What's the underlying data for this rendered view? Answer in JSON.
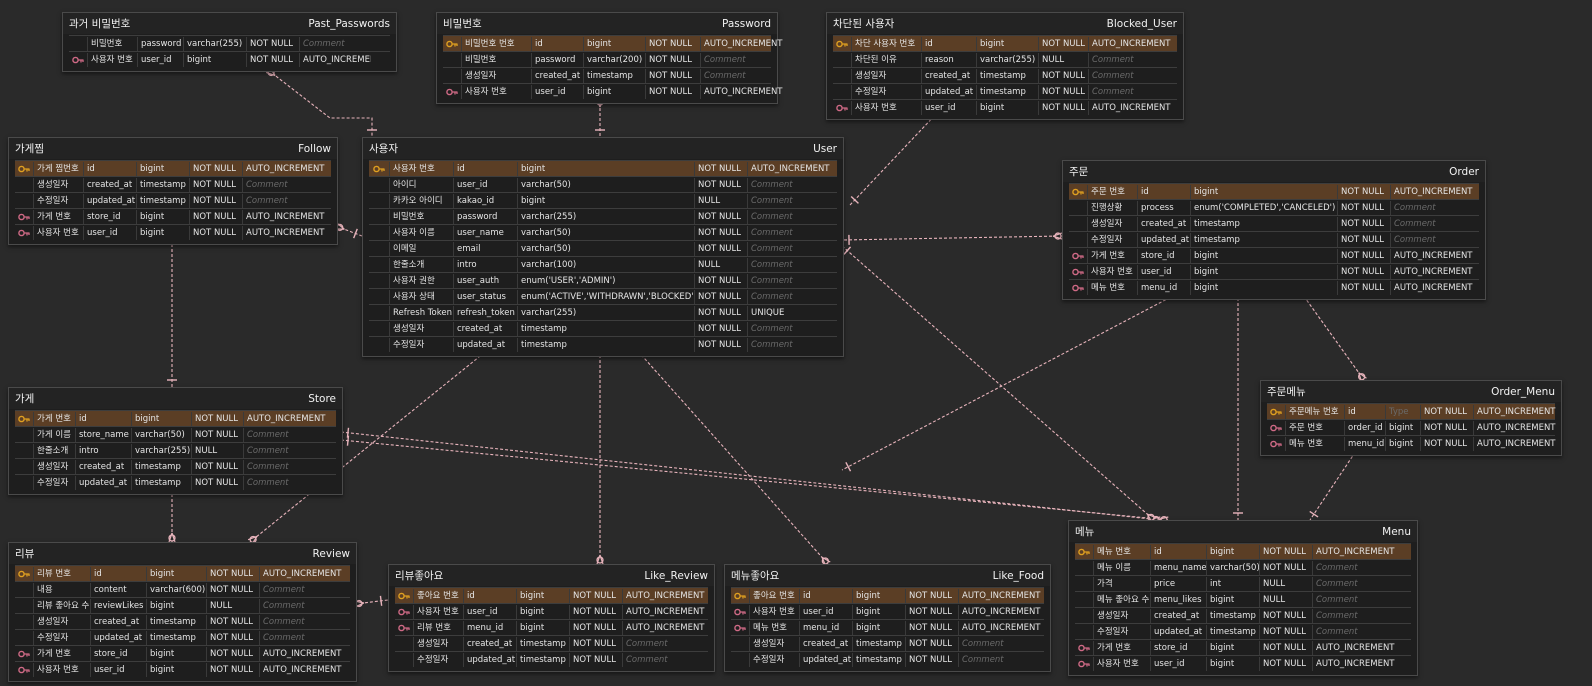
{
  "tables": [
    {
      "id": "past_passwords",
      "label": "과거 비밀번호",
      "name": "Past_Passwords",
      "cols": [
        [
          "",
          "비밀번호",
          "password",
          "varchar(255)",
          "NOT NULL",
          "Comment"
        ],
        [
          "fk",
          "사용자 번호",
          "user_id",
          "bigint",
          "NOT NULL",
          "AUTO_INCREMENT"
        ]
      ]
    },
    {
      "id": "password",
      "label": "비밀번호",
      "name": "Password",
      "cols": [
        [
          "pk",
          "비밀번호 번호",
          "id",
          "bigint",
          "NOT NULL",
          "AUTO_INCREMENT"
        ],
        [
          "",
          "비밀번호",
          "password",
          "varchar(200)",
          "NOT NULL",
          "Comment"
        ],
        [
          "",
          "생성일자",
          "created_at",
          "timestamp",
          "NOT NULL",
          "Comment"
        ],
        [
          "fk",
          "사용자 번호",
          "user_id",
          "bigint",
          "NOT NULL",
          "AUTO_INCREMENT"
        ]
      ]
    },
    {
      "id": "blocked_user",
      "label": "차단된 사용자",
      "name": "Blocked_User",
      "cols": [
        [
          "pk",
          "차단 사용자 번호",
          "id",
          "bigint",
          "NOT NULL",
          "AUTO_INCREMENT"
        ],
        [
          "",
          "차단된 이유",
          "reason",
          "varchar(255)",
          "NULL",
          "Comment"
        ],
        [
          "",
          "생성일자",
          "created_at",
          "timestamp",
          "NOT NULL",
          "Comment"
        ],
        [
          "",
          "수정일자",
          "updated_at",
          "timestamp",
          "NOT NULL",
          "Comment"
        ],
        [
          "fk",
          "사용자 번호",
          "user_id",
          "bigint",
          "NOT NULL",
          "AUTO_INCREMENT"
        ]
      ]
    },
    {
      "id": "follow",
      "label": "가게찜",
      "name": "Follow",
      "cols": [
        [
          "pk",
          "가게 찜번호",
          "id",
          "bigint",
          "NOT NULL",
          "AUTO_INCREMENT"
        ],
        [
          "",
          "생성일자",
          "created_at",
          "timestamp",
          "NOT NULL",
          "Comment"
        ],
        [
          "",
          "수정일자",
          "updated_at",
          "timestamp",
          "NOT NULL",
          "Comment"
        ],
        [
          "fk",
          "가게 번호",
          "store_id",
          "bigint",
          "NOT NULL",
          "AUTO_INCREMENT"
        ],
        [
          "fk",
          "사용자 번호",
          "user_id",
          "bigint",
          "NOT NULL",
          "AUTO_INCREMENT"
        ]
      ]
    },
    {
      "id": "user",
      "label": "사용자",
      "name": "User",
      "cols": [
        [
          "pk",
          "사용자 번호",
          "id",
          "bigint",
          "NOT NULL",
          "AUTO_INCREMENT"
        ],
        [
          "",
          "아이디",
          "user_id",
          "varchar(50)",
          "NOT NULL",
          "Comment"
        ],
        [
          "",
          "카카오 아이디",
          "kakao_id",
          "bigint",
          "NULL",
          "Comment"
        ],
        [
          "",
          "비밀번호",
          "password",
          "varchar(255)",
          "NOT NULL",
          "Comment"
        ],
        [
          "",
          "사용자 이름",
          "user_name",
          "varchar(50)",
          "NOT NULL",
          "Comment"
        ],
        [
          "",
          "이메일",
          "email",
          "varchar(50)",
          "NOT NULL",
          "Comment"
        ],
        [
          "",
          "한줄소개",
          "intro",
          "varchar(100)",
          "NULL",
          "Comment"
        ],
        [
          "",
          "사용자 권한",
          "user_auth",
          "enum('USER','ADMIN')",
          "NOT NULL",
          "Comment"
        ],
        [
          "",
          "사용자 상태",
          "user_status",
          "enum('ACTIVE','WITHDRAWN','BLOCKED')",
          "NOT NULL",
          "Comment"
        ],
        [
          "",
          "Refresh Token",
          "refresh_token",
          "varchar(255)",
          "NOT NULL",
          "UNIQUE"
        ],
        [
          "",
          "생성일자",
          "created_at",
          "timestamp",
          "NOT NULL",
          "Comment"
        ],
        [
          "",
          "수정일자",
          "updated_at",
          "timestamp",
          "NOT NULL",
          "Comment"
        ]
      ]
    },
    {
      "id": "order",
      "label": "주문",
      "name": "Order",
      "cols": [
        [
          "pk",
          "주문 번호",
          "id",
          "bigint",
          "NOT NULL",
          "AUTO_INCREMENT"
        ],
        [
          "",
          "진행상황",
          "process",
          "enum('COMPLETED','CANCELED')",
          "NOT NULL",
          "Comment"
        ],
        [
          "",
          "생성일자",
          "created_at",
          "timestamp",
          "NOT NULL",
          "Comment"
        ],
        [
          "",
          "수정일자",
          "updated_at",
          "timestamp",
          "NOT NULL",
          "Comment"
        ],
        [
          "fk",
          "가게 번호",
          "store_id",
          "bigint",
          "NOT NULL",
          "AUTO_INCREMENT"
        ],
        [
          "fk",
          "사용자 번호",
          "user_id",
          "bigint",
          "NOT NULL",
          "AUTO_INCREMENT"
        ],
        [
          "fk",
          "메뉴 번호",
          "menu_id",
          "bigint",
          "NOT NULL",
          "AUTO_INCREMENT"
        ]
      ]
    },
    {
      "id": "store",
      "label": "가게",
      "name": "Store",
      "cols": [
        [
          "pk",
          "가게 번호",
          "id",
          "bigint",
          "NOT NULL",
          "AUTO_INCREMENT"
        ],
        [
          "",
          "가게 이름",
          "store_name",
          "varchar(50)",
          "NOT NULL",
          "Comment"
        ],
        [
          "",
          "한줄소개",
          "intro",
          "varchar(255)",
          "NULL",
          "Comment"
        ],
        [
          "",
          "생성일자",
          "created_at",
          "timestamp",
          "NOT NULL",
          "Comment"
        ],
        [
          "",
          "수정일자",
          "updated_at",
          "timestamp",
          "NOT NULL",
          "Comment"
        ]
      ]
    },
    {
      "id": "order_menu",
      "label": "주문메뉴",
      "name": "Order_Menu",
      "cols": [
        [
          "pk",
          "주문메뉴 번호",
          "id",
          "Type",
          "NOT NULL",
          "AUTO_INCREMENT"
        ],
        [
          "fk",
          "주문 번호",
          "order_id",
          "bigint",
          "NOT NULL",
          "AUTO_INCREMENT"
        ],
        [
          "fk",
          "메뉴 번호",
          "menu_id",
          "bigint",
          "NOT NULL",
          "AUTO_INCREMENT"
        ]
      ]
    },
    {
      "id": "review",
      "label": "리뷰",
      "name": "Review",
      "cols": [
        [
          "pk",
          "리뷰 번호",
          "id",
          "bigint",
          "NOT NULL",
          "AUTO_INCREMENT"
        ],
        [
          "",
          "내용",
          "content",
          "varchar(600)",
          "NOT NULL",
          "Comment"
        ],
        [
          "",
          "리뷰 좋아요 수",
          "reviewLikes",
          "bigint",
          "NULL",
          "Comment"
        ],
        [
          "",
          "생성일자",
          "created_at",
          "timestamp",
          "NOT NULL",
          "Comment"
        ],
        [
          "",
          "수정일자",
          "updated_at",
          "timestamp",
          "NOT NULL",
          "Comment"
        ],
        [
          "fk",
          "가게 번호",
          "store_id",
          "bigint",
          "NOT NULL",
          "AUTO_INCREMENT"
        ],
        [
          "fk",
          "사용자 번호",
          "user_id",
          "bigint",
          "NOT NULL",
          "AUTO_INCREMENT"
        ]
      ]
    },
    {
      "id": "like_review",
      "label": "리뷰좋아요",
      "name": "Like_Review",
      "cols": [
        [
          "pk",
          "좋아요 번호",
          "id",
          "bigint",
          "NOT NULL",
          "AUTO_INCREMENT"
        ],
        [
          "fk",
          "사용자 번호",
          "user_id",
          "bigint",
          "NOT NULL",
          "AUTO_INCREMENT"
        ],
        [
          "fk",
          "리뷰 번호",
          "menu_id",
          "bigint",
          "NOT NULL",
          "AUTO_INCREMENT"
        ],
        [
          "",
          "생성일자",
          "created_at",
          "timestamp",
          "NOT NULL",
          "Comment"
        ],
        [
          "",
          "수정일자",
          "updated_at",
          "timestamp",
          "NOT NULL",
          "Comment"
        ]
      ]
    },
    {
      "id": "like_food",
      "label": "메뉴좋아요",
      "name": "Like_Food",
      "cols": [
        [
          "pk",
          "좋아요 번호",
          "id",
          "bigint",
          "NOT NULL",
          "AUTO_INCREMENT"
        ],
        [
          "fk",
          "사용자 번호",
          "user_id",
          "bigint",
          "NOT NULL",
          "AUTO_INCREMENT"
        ],
        [
          "fk",
          "메뉴 번호",
          "menu_id",
          "bigint",
          "NOT NULL",
          "AUTO_INCREMENT"
        ],
        [
          "",
          "생성일자",
          "created_at",
          "timestamp",
          "NOT NULL",
          "Comment"
        ],
        [
          "",
          "수정일자",
          "updated_at",
          "timestamp",
          "NOT NULL",
          "Comment"
        ]
      ]
    },
    {
      "id": "menu",
      "label": "메뉴",
      "name": "Menu",
      "cols": [
        [
          "pk",
          "메뉴 번호",
          "id",
          "bigint",
          "NOT NULL",
          "AUTO_INCREMENT"
        ],
        [
          "",
          "메뉴 이름",
          "menu_name",
          "varchar(50)",
          "NOT NULL",
          "Comment"
        ],
        [
          "",
          "가격",
          "price",
          "int",
          "NULL",
          "Comment"
        ],
        [
          "",
          "메뉴 좋아요 수",
          "menu_likes",
          "bigint",
          "NULL",
          "Comment"
        ],
        [
          "",
          "생성일자",
          "created_at",
          "timestamp",
          "NOT NULL",
          "Comment"
        ],
        [
          "",
          "수정일자",
          "updated_at",
          "timestamp",
          "NOT NULL",
          "Comment"
        ],
        [
          "fk",
          "가게 번호",
          "store_id",
          "bigint",
          "NOT NULL",
          "AUTO_INCREMENT"
        ],
        [
          "fk",
          "사용자 번호",
          "user_id",
          "bigint",
          "NOT NULL",
          "AUTO_INCREMENT"
        ]
      ]
    }
  ],
  "colors": {
    "line": "#e8b4bc",
    "pk_row": "#5b3e25",
    "key": "#e0a020",
    "fk_key": "#d06a86"
  }
}
